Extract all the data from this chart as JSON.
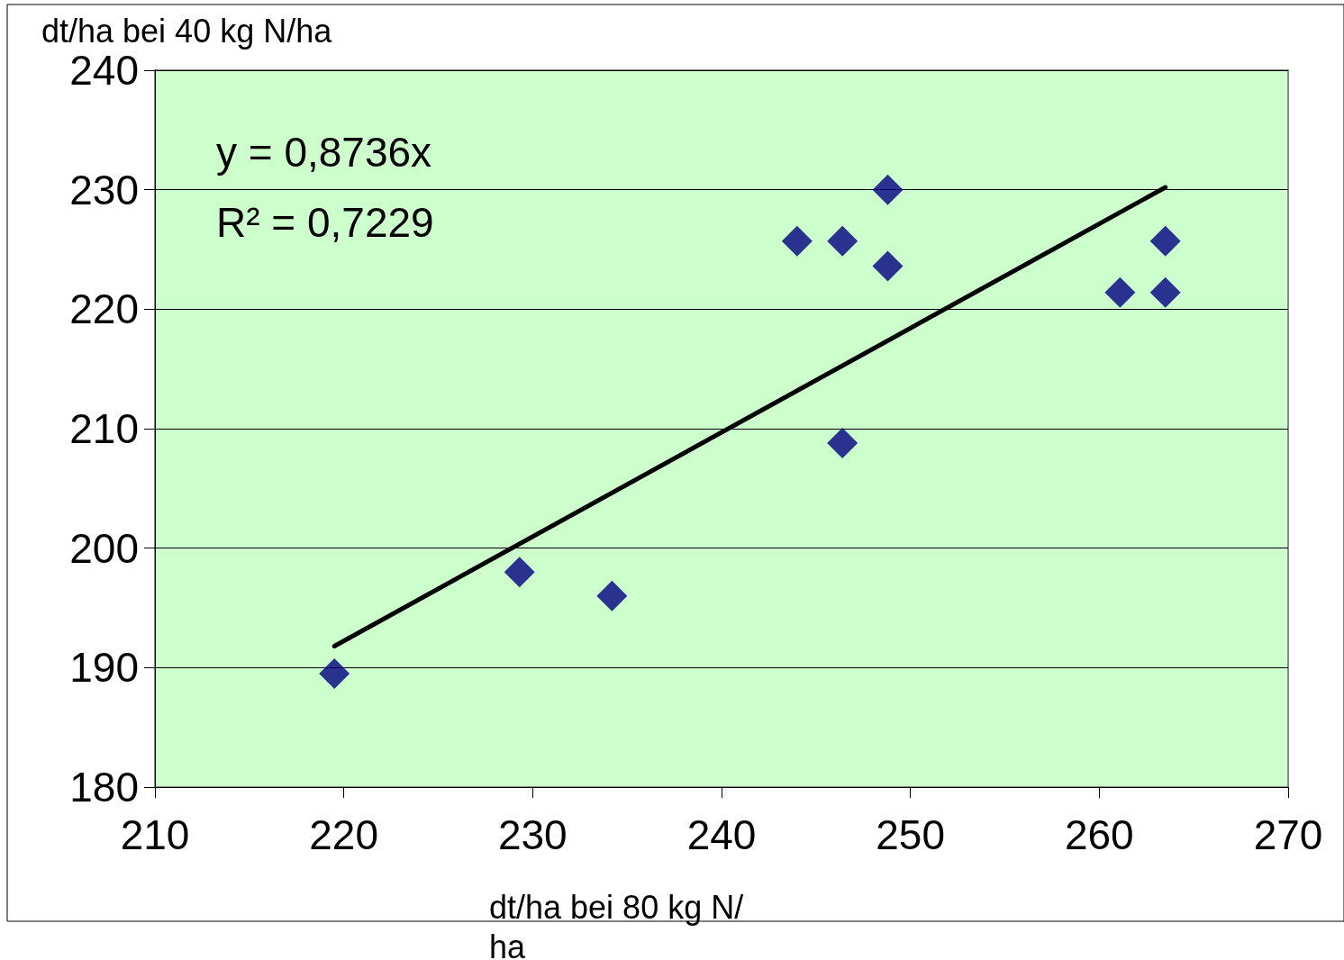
{
  "chart_data": {
    "type": "scatter",
    "xlabel": "dt/ha bei 80 kg N/ha",
    "ylabel": "dt/ha bei 40 kg N/ha",
    "annotations": [
      "y = 0,8736x",
      "R² = 0,7229"
    ],
    "series": [
      {
        "type": "scatter",
        "color": "#000080",
        "marker": "diamond",
        "x": [
          219.5,
          229.3,
          234.2,
          244.0,
          246.4,
          248.8,
          248.8,
          246.4,
          261.1,
          263.5,
          263.5
        ],
        "values": [
          189.5,
          198.0,
          196.0,
          225.7,
          225.7,
          230.0,
          223.6,
          208.8,
          221.4,
          225.7,
          221.4
        ]
      },
      {
        "type": "line",
        "color": "#000000",
        "marker": "none",
        "line_style": "solid",
        "x": [
          219.5,
          263.5
        ],
        "values": [
          191.8,
          230.2
        ]
      }
    ],
    "xlim": [
      210,
      270
    ],
    "xticks": [
      210,
      220,
      230,
      240,
      250,
      260,
      270
    ],
    "ylim": [
      180,
      240
    ],
    "yticks": [
      180,
      190,
      200,
      210,
      220,
      230,
      240
    ],
    "grid": "y"
  }
}
